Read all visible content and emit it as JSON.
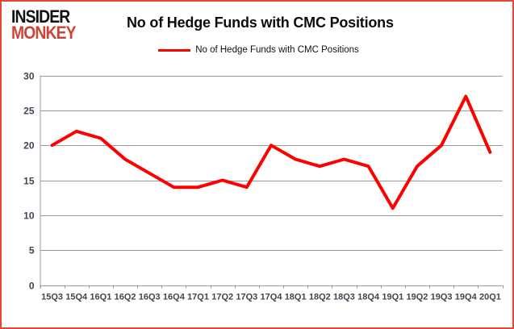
{
  "logo": {
    "line1": "INSIDER",
    "line2": "MONKEY"
  },
  "header": {
    "title": "No of Hedge Funds with CMC Positions"
  },
  "legend": {
    "label": "No of Hedge Funds with CMC Positions"
  },
  "colors": {
    "line": "#fe0000",
    "grid": "#9b9b9b",
    "axis_text": "#3d4651",
    "frame_border": "#e6453a",
    "logo_black": "#111111",
    "logo_red": "#cb4534",
    "title_text": "#0c0c0c"
  },
  "chart_data": {
    "type": "line",
    "title": "No of Hedge Funds with CMC Positions",
    "categories": [
      "15Q3",
      "15Q4",
      "16Q1",
      "16Q2",
      "16Q3",
      "16Q4",
      "17Q1",
      "17Q2",
      "17Q3",
      "17Q4",
      "18Q1",
      "18Q2",
      "18Q3",
      "18Q4",
      "19Q1",
      "19Q2",
      "19Q3",
      "19Q4",
      "20Q1"
    ],
    "values": [
      20,
      22,
      21,
      18,
      16,
      14,
      14,
      15,
      14,
      20,
      18,
      17,
      18,
      17,
      11,
      17,
      20,
      27,
      19
    ],
    "series_name": "No of Hedge Funds with CMC Positions",
    "xlabel": "",
    "ylabel": "",
    "ylim": [
      0,
      30
    ],
    "ytick_step": 5,
    "grid": true,
    "legend_position": "top"
  }
}
